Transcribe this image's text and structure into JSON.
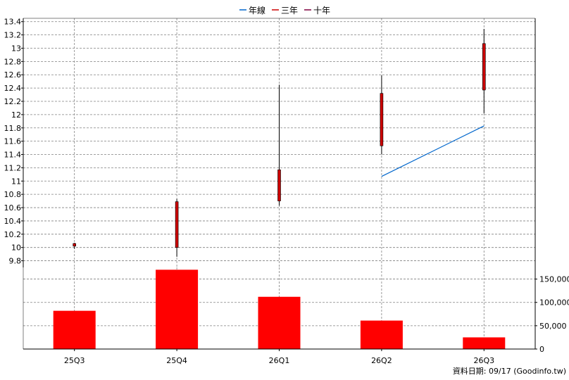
{
  "legend": {
    "items": [
      {
        "label": "年線",
        "color": "#0066cc"
      },
      {
        "label": "三年",
        "color": "#cc0000"
      },
      {
        "label": "十年",
        "color": "#800040"
      }
    ]
  },
  "footer": {
    "source_label": "資料日期: 09/17  (Goodinfo.tw)"
  },
  "colors": {
    "candle_body": "#cc0000",
    "candle_wick": "#000000",
    "volume_bar": "#ff0000",
    "year_line": "#0066cc",
    "grid": "#808080"
  },
  "chart_data": [
    {
      "type": "candlestick",
      "title": "",
      "categories": [
        "25Q3",
        "25Q4",
        "26Q1",
        "26Q2",
        "26Q3"
      ],
      "ohlc": [
        {
          "open": 10.02,
          "high": 10.07,
          "low": 9.98,
          "close": 10.06
        },
        {
          "open": 10.0,
          "high": 10.73,
          "low": 9.86,
          "close": 10.69
        },
        {
          "open": 10.7,
          "high": 12.45,
          "low": 10.63,
          "close": 11.17
        },
        {
          "open": 11.53,
          "high": 12.59,
          "low": 11.4,
          "close": 12.32
        },
        {
          "open": 12.37,
          "high": 13.29,
          "low": 12.02,
          "close": 13.07
        }
      ],
      "series": [
        {
          "name": "年線",
          "values": [
            null,
            null,
            null,
            11.07,
            11.83
          ]
        }
      ],
      "ylim": [
        9.7,
        13.45
      ],
      "yticks": [
        "9.8",
        "10",
        "10.2",
        "10.4",
        "10.6",
        "10.8",
        "11",
        "11.2",
        "11.4",
        "11.6",
        "11.8",
        "12",
        "12.2",
        "12.4",
        "12.6",
        "12.8",
        "13",
        "13.2",
        "13.4"
      ],
      "ytick_values": [
        9.8,
        10,
        10.2,
        10.4,
        10.6,
        10.8,
        11,
        11.2,
        11.4,
        11.6,
        11.8,
        12,
        12.2,
        12.4,
        12.6,
        12.8,
        13,
        13.2,
        13.4
      ],
      "grid": true,
      "legend_position": "top-center"
    },
    {
      "type": "bar",
      "title": "",
      "categories": [
        "25Q3",
        "25Q4",
        "26Q1",
        "26Q2",
        "26Q3"
      ],
      "values": [
        82000,
        170000,
        112000,
        61000,
        25000
      ],
      "ylim": [
        0,
        175000
      ],
      "yticks": [
        "0",
        "50,000",
        "100,000",
        "150,000"
      ],
      "ytick_values": [
        0,
        50000,
        100000,
        150000
      ],
      "grid": true
    }
  ]
}
